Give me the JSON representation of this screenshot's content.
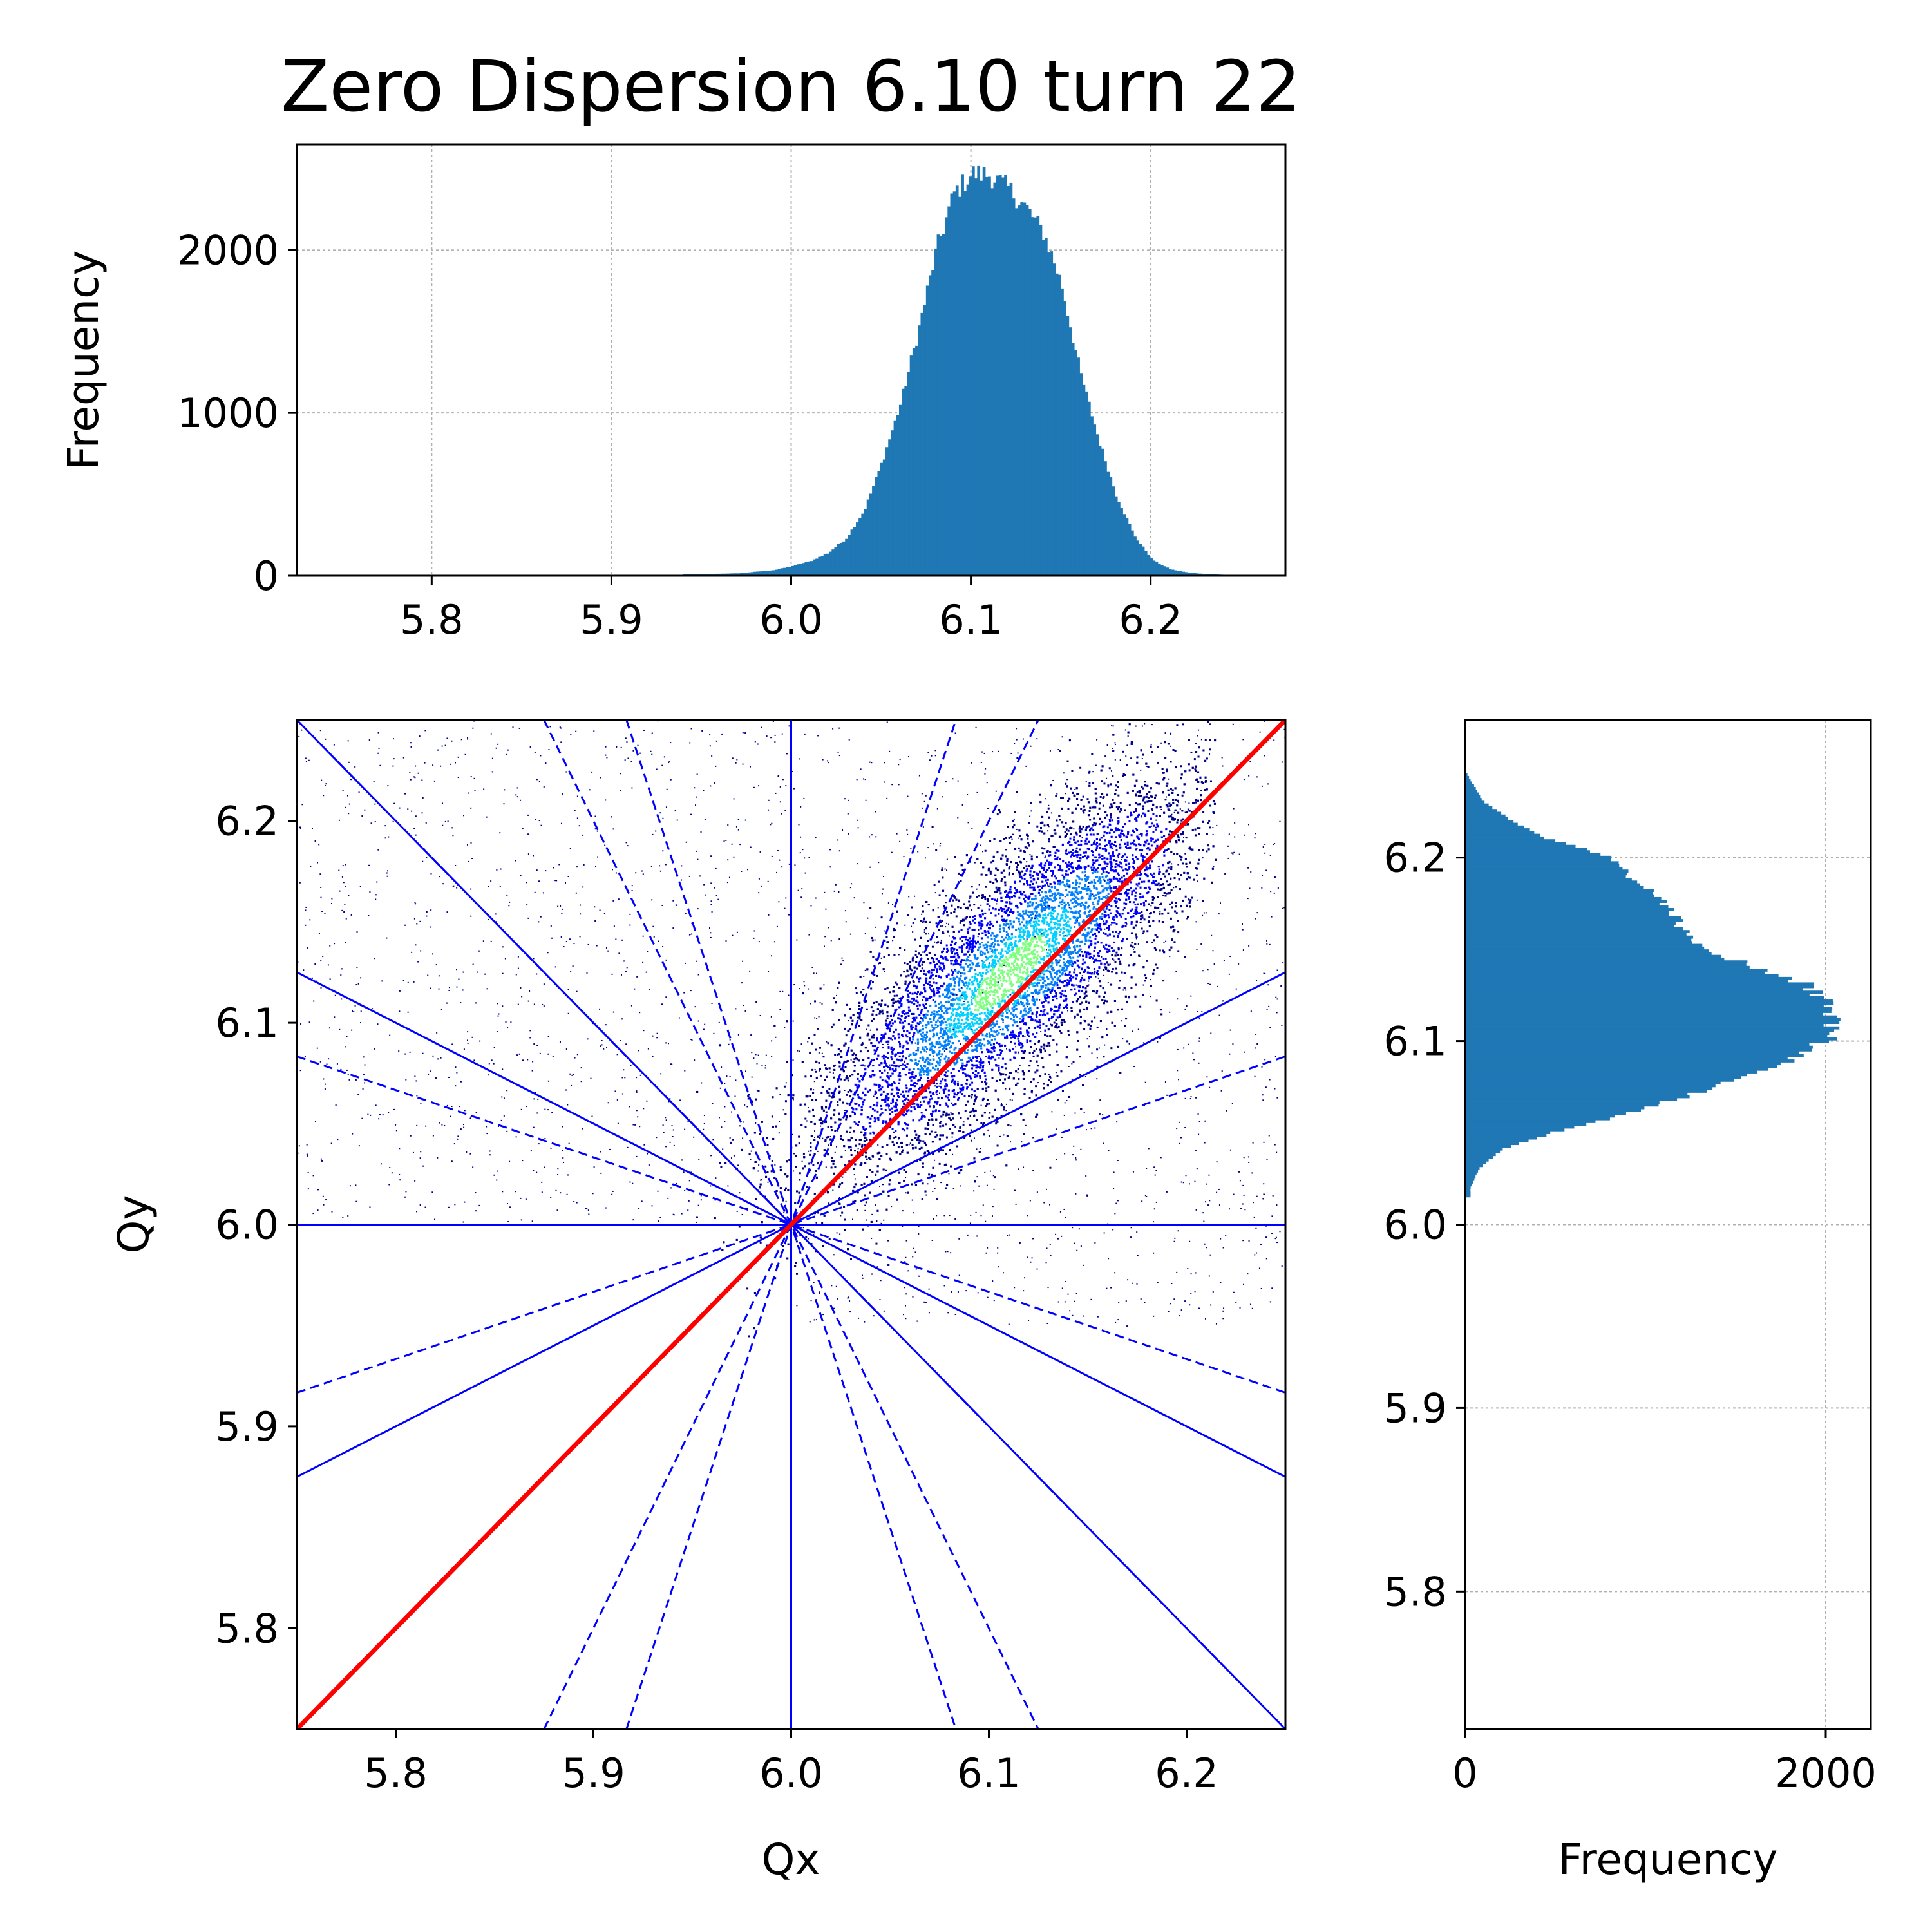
{
  "figure": {
    "title": "Zero Dispersion 6.10 turn 22"
  },
  "chart_data": [
    {
      "id": "top-histogram",
      "type": "bar",
      "xlabel": "",
      "ylabel": "Frequency",
      "xlim": [
        5.725,
        6.275
      ],
      "ylim": [
        0,
        2650
      ],
      "xticks": [
        "5.8",
        "5.9",
        "6.0",
        "6.1",
        "6.2"
      ],
      "yticks": [
        "0",
        "1000",
        "2000"
      ],
      "grid": true,
      "color": "#1f77b4",
      "bins": [
        [
          5.95,
          10
        ],
        [
          5.97,
          15
        ],
        [
          5.99,
          35
        ],
        [
          6.0,
          60
        ],
        [
          6.01,
          90
        ],
        [
          6.02,
          140
        ],
        [
          6.03,
          230
        ],
        [
          6.04,
          400
        ],
        [
          6.05,
          700
        ],
        [
          6.06,
          1050
        ],
        [
          6.07,
          1500
        ],
        [
          6.08,
          2000
        ],
        [
          6.09,
          2350
        ],
        [
          6.1,
          2470
        ],
        [
          6.11,
          2460
        ],
        [
          6.12,
          2380
        ],
        [
          6.13,
          2260
        ],
        [
          6.14,
          2100
        ],
        [
          6.15,
          1780
        ],
        [
          6.16,
          1250
        ],
        [
          6.17,
          850
        ],
        [
          6.18,
          500
        ],
        [
          6.19,
          250
        ],
        [
          6.2,
          100
        ],
        [
          6.21,
          40
        ],
        [
          6.22,
          20
        ],
        [
          6.23,
          10
        ],
        [
          6.25,
          2
        ]
      ]
    },
    {
      "id": "tune-diagram",
      "type": "scatter",
      "xlabel": "Qx",
      "ylabel": "Qy",
      "xlim": [
        5.75,
        6.25
      ],
      "ylim": [
        5.75,
        6.25
      ],
      "xticks": [
        "5.8",
        "5.9",
        "6.0",
        "6.1",
        "6.2"
      ],
      "yticks": [
        "5.8",
        "5.9",
        "6.0",
        "6.1",
        "6.2"
      ],
      "grid": false,
      "resonance_color": "#0000ff",
      "diagonal_color": "#ff0000",
      "colormap": [
        "#00008b",
        "#0000ff",
        "#0080ff",
        "#00d0ff",
        "#7fff7f",
        "#ffff00"
      ],
      "resonance_center": [
        6.0,
        6.0
      ],
      "resonance_lines": [
        {
          "kind": "solid",
          "x1": 5.75,
          "y1": 6.0,
          "x2": 6.25,
          "y2": 6.0
        },
        {
          "kind": "solid",
          "x1": 6.0,
          "y1": 5.75,
          "x2": 6.0,
          "y2": 6.25
        },
        {
          "kind": "solid",
          "x1": 5.75,
          "y1": 6.25,
          "x2": 6.25,
          "y2": 5.75
        },
        {
          "kind": "solid",
          "x1": 5.75,
          "y1": 6.125,
          "x2": 6.25,
          "y2": 5.875
        },
        {
          "kind": "solid",
          "x1": 5.75,
          "y1": 5.875,
          "x2": 6.25,
          "y2": 6.125
        },
        {
          "kind": "dashed",
          "x1": 5.75,
          "y1": 6.0833,
          "x2": 6.25,
          "y2": 5.9167
        },
        {
          "kind": "dashed",
          "x1": 5.75,
          "y1": 5.9167,
          "x2": 6.25,
          "y2": 6.0833
        },
        {
          "kind": "dashed",
          "x1": 5.875,
          "y1": 6.25,
          "x2": 6.125,
          "y2": 5.75
        },
        {
          "kind": "dashed",
          "x1": 5.875,
          "y1": 5.75,
          "x2": 6.125,
          "y2": 6.25
        },
        {
          "kind": "dashed",
          "x1": 5.9167,
          "y1": 6.25,
          "x2": 6.0833,
          "y2": 5.75
        },
        {
          "kind": "dashed",
          "x1": 5.9167,
          "y1": 5.75,
          "x2": 6.0833,
          "y2": 6.25
        }
      ],
      "diagonal": {
        "x1": 5.75,
        "y1": 5.75,
        "x2": 6.25,
        "y2": 6.25
      },
      "distribution": {
        "center_x": 6.11,
        "center_y": 6.125,
        "spread_along": 0.065,
        "spread_across": 0.022,
        "core_points": 14000,
        "halo_points": 2500
      }
    },
    {
      "id": "right-histogram",
      "type": "bar",
      "orientation": "horizontal",
      "xlabel": "Frequency",
      "ylabel": "",
      "xlim": [
        0,
        2250
      ],
      "ylim": [
        5.725,
        6.275
      ],
      "xticks": [
        "0",
        "2000"
      ],
      "yticks": [
        "5.8",
        "5.9",
        "6.0",
        "6.1",
        "6.2"
      ],
      "grid": true,
      "color": "#1f77b4",
      "bins": [
        [
          6.02,
          30
        ],
        [
          6.03,
          80
        ],
        [
          6.04,
          200
        ],
        [
          6.05,
          500
        ],
        [
          6.06,
          900
        ],
        [
          6.07,
          1250
        ],
        [
          6.08,
          1550
        ],
        [
          6.09,
          1820
        ],
        [
          6.1,
          2000
        ],
        [
          6.11,
          2050
        ],
        [
          6.12,
          2020
        ],
        [
          6.13,
          1900
        ],
        [
          6.14,
          1600
        ],
        [
          6.15,
          1300
        ],
        [
          6.16,
          1200
        ],
        [
          6.17,
          1150
        ],
        [
          6.18,
          1050
        ],
        [
          6.19,
          900
        ],
        [
          6.2,
          800
        ],
        [
          6.21,
          450
        ],
        [
          6.22,
          250
        ],
        [
          6.23,
          100
        ],
        [
          6.24,
          40
        ],
        [
          6.245,
          10
        ]
      ]
    }
  ]
}
